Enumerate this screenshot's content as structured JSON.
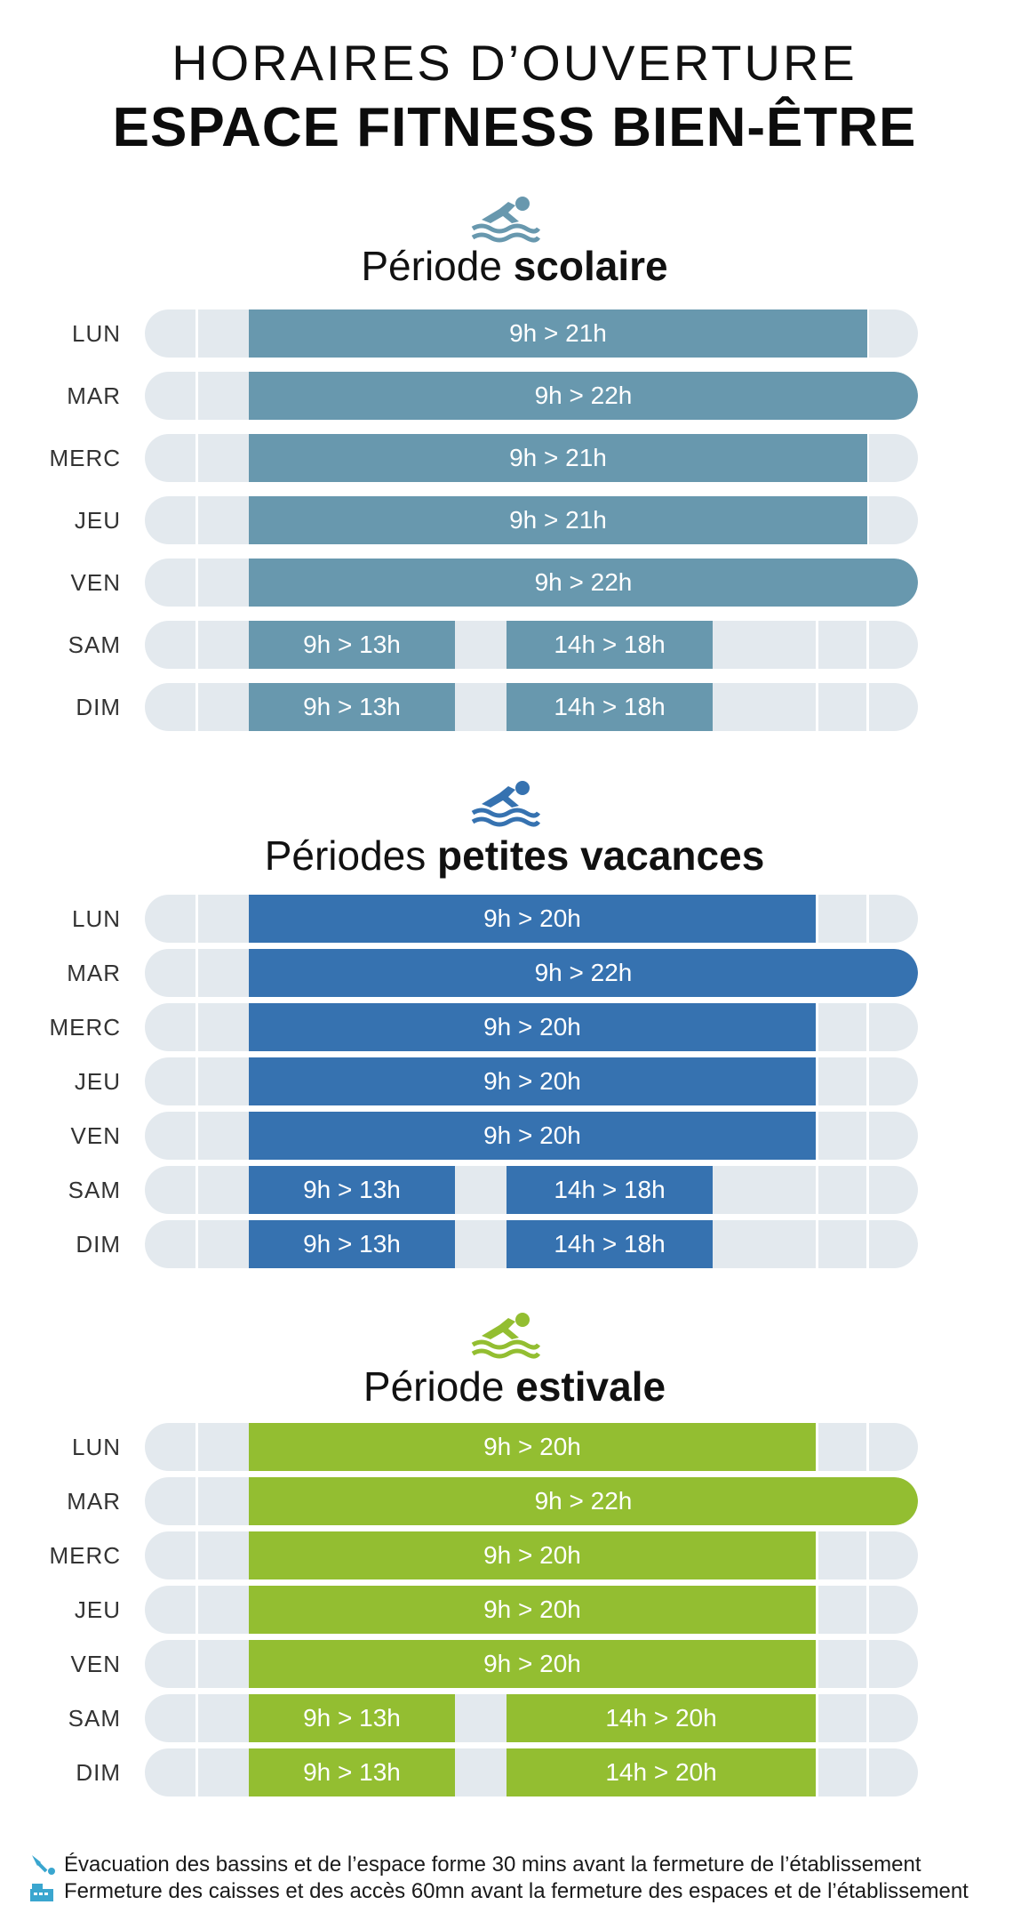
{
  "header": {
    "line1": "HORAIRES D’OUVERTURE",
    "line2": "ESPACE FITNESS BIEN-ÊTRE"
  },
  "periods": [
    {
      "title_prefix": "Période",
      "title_bold": "scolaire",
      "color": "#6898ae",
      "icon": "swimmer-icon",
      "rows": [
        {
          "day": "LUN",
          "slots": [
            {
              "label": "9h > 21h",
              "start": 9,
              "end": 21
            }
          ]
        },
        {
          "day": "MAR",
          "slots": [
            {
              "label": "9h > 22h",
              "start": 9,
              "end": 22
            }
          ]
        },
        {
          "day": "MERC",
          "slots": [
            {
              "label": "9h > 21h",
              "start": 9,
              "end": 21
            }
          ]
        },
        {
          "day": "JEU",
          "slots": [
            {
              "label": "9h > 21h",
              "start": 9,
              "end": 21
            }
          ]
        },
        {
          "day": "VEN",
          "slots": [
            {
              "label": "9h > 22h",
              "start": 9,
              "end": 22
            }
          ]
        },
        {
          "day": "SAM",
          "slots": [
            {
              "label": "9h > 13h",
              "start": 9,
              "end": 13
            },
            {
              "label": "14h > 18h",
              "start": 14,
              "end": 18
            }
          ]
        },
        {
          "day": "DIM",
          "slots": [
            {
              "label": "9h > 13h",
              "start": 9,
              "end": 13
            },
            {
              "label": "14h > 18h",
              "start": 14,
              "end": 18
            }
          ]
        }
      ]
    },
    {
      "title_prefix": "Périodes",
      "title_bold": "petites vacances",
      "color": "#3672b0",
      "icon": "swimmer-icon",
      "rows": [
        {
          "day": "LUN",
          "slots": [
            {
              "label": "9h > 20h",
              "start": 9,
              "end": 20
            }
          ]
        },
        {
          "day": "MAR",
          "slots": [
            {
              "label": "9h > 22h",
              "start": 9,
              "end": 22
            }
          ]
        },
        {
          "day": "MERC",
          "slots": [
            {
              "label": "9h > 20h",
              "start": 9,
              "end": 20
            }
          ]
        },
        {
          "day": "JEU",
          "slots": [
            {
              "label": "9h > 20h",
              "start": 9,
              "end": 20
            }
          ]
        },
        {
          "day": "VEN",
          "slots": [
            {
              "label": "9h > 20h",
              "start": 9,
              "end": 20
            }
          ]
        },
        {
          "day": "SAM",
          "slots": [
            {
              "label": "9h > 13h",
              "start": 9,
              "end": 13
            },
            {
              "label": "14h > 18h",
              "start": 14,
              "end": 18
            }
          ]
        },
        {
          "day": "DIM",
          "slots": [
            {
              "label": "9h > 13h",
              "start": 9,
              "end": 13
            },
            {
              "label": "14h > 18h",
              "start": 14,
              "end": 18
            }
          ]
        }
      ]
    },
    {
      "title_prefix": "Période",
      "title_bold": "estivale",
      "color": "#93be31",
      "icon": "swimmer-icon",
      "rows": [
        {
          "day": "LUN",
          "slots": [
            {
              "label": "9h > 20h",
              "start": 9,
              "end": 20
            }
          ]
        },
        {
          "day": "MAR",
          "slots": [
            {
              "label": "9h > 22h",
              "start": 9,
              "end": 22
            }
          ]
        },
        {
          "day": "MERC",
          "slots": [
            {
              "label": "9h > 20h",
              "start": 9,
              "end": 20
            }
          ]
        },
        {
          "day": "JEU",
          "slots": [
            {
              "label": "9h > 20h",
              "start": 9,
              "end": 20
            }
          ]
        },
        {
          "day": "VEN",
          "slots": [
            {
              "label": "9h > 20h",
              "start": 9,
              "end": 20
            }
          ]
        },
        {
          "day": "SAM",
          "slots": [
            {
              "label": "9h > 13h",
              "start": 9,
              "end": 13
            },
            {
              "label": "14h > 20h",
              "start": 14,
              "end": 20
            }
          ]
        },
        {
          "day": "DIM",
          "slots": [
            {
              "label": "9h > 13h",
              "start": 9,
              "end": 13
            },
            {
              "label": "14h > 20h",
              "start": 14,
              "end": 20
            }
          ]
        }
      ]
    }
  ],
  "notes": [
    {
      "icon": "diver-icon",
      "text": "Évacuation des bassins et de l’espace forme 30 mins avant la fermeture de l’établissement"
    },
    {
      "icon": "cash-register-icon",
      "text": "Fermeture des caisses et des accès 60mn avant la fermeture des espaces et de l’établissement"
    }
  ],
  "colors": {
    "track": "#e3e9ee",
    "note_icon": "#3aa6cf"
  }
}
